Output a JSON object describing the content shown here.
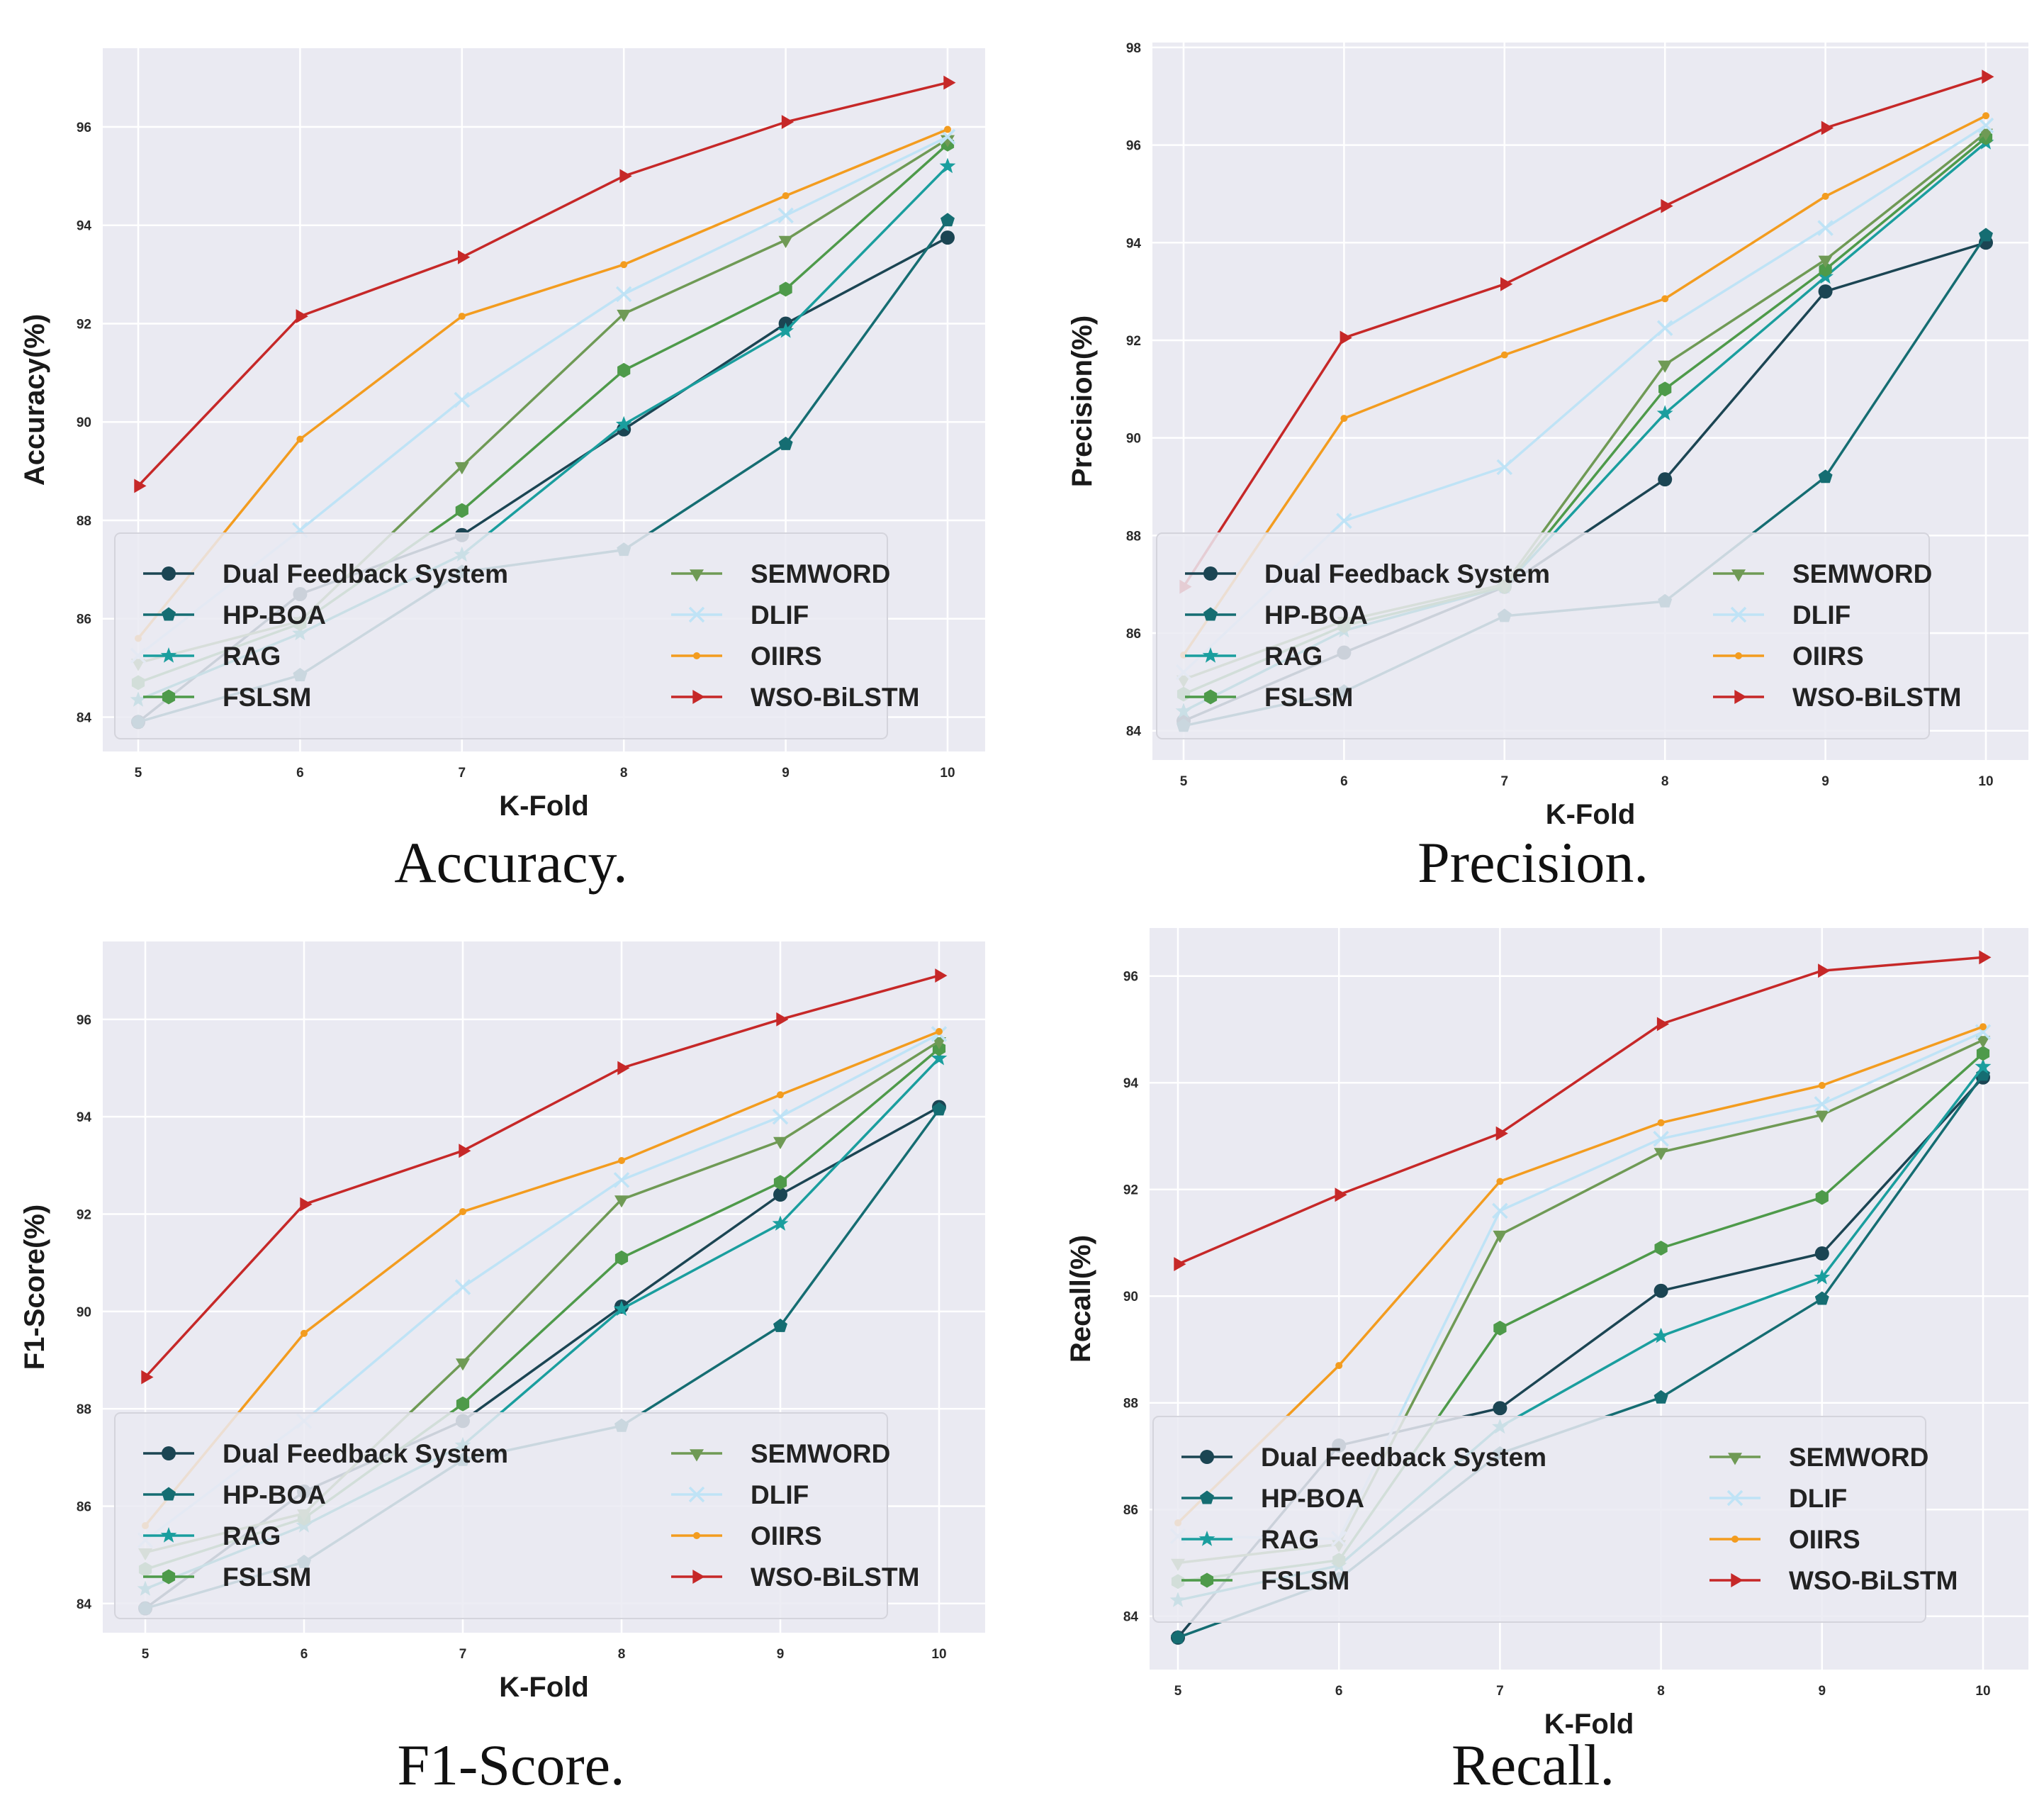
{
  "colors": {
    "Dual Feedback System": "#1b4553",
    "HP-BOA": "#156d72",
    "RAG": "#1a9e9e",
    "FSLSM": "#4e9a4a",
    "SEMWORD": "#6f9a55",
    "DLIF": "#bfe3f6",
    "OIIRS": "#f39c1f",
    "WSO-BiLSTM": "#c62828"
  },
  "markers": {
    "Dual Feedback System": "circle",
    "HP-BOA": "pentagon",
    "RAG": "star",
    "FSLSM": "hexagon",
    "SEMWORD": "triangle-down",
    "DLIF": "x",
    "OIIRS": "dot",
    "WSO-BiLSTM": "triangle-right"
  },
  "chart_data": [
    {
      "type": "line",
      "caption": "Accuracy.",
      "xlabel": "K-Fold",
      "ylabel": "Accuracy(%)",
      "x": [
        5,
        6,
        7,
        8,
        9,
        10
      ],
      "ylim": [
        83.3,
        97.6
      ],
      "yticks": [
        84,
        86,
        88,
        90,
        92,
        94,
        96
      ],
      "legend_loc": "lower-left",
      "series": [
        {
          "name": "Dual Feedback System",
          "values": [
            83.9,
            86.5,
            87.7,
            89.85,
            92.0,
            93.75
          ]
        },
        {
          "name": "HP-BOA",
          "values": [
            83.9,
            84.85,
            86.95,
            87.4,
            89.55,
            94.1
          ]
        },
        {
          "name": "RAG",
          "values": [
            84.35,
            85.7,
            87.3,
            89.95,
            91.85,
            95.2
          ]
        },
        {
          "name": "FSLSM",
          "values": [
            84.7,
            85.9,
            88.2,
            91.05,
            92.7,
            95.65
          ]
        },
        {
          "name": "SEMWORD",
          "values": [
            85.1,
            85.95,
            89.1,
            92.2,
            93.7,
            95.75
          ]
        },
        {
          "name": "DLIF",
          "values": [
            85.25,
            87.8,
            90.45,
            92.6,
            94.2,
            95.8
          ]
        },
        {
          "name": "OIIRS",
          "values": [
            85.6,
            89.65,
            92.15,
            93.2,
            94.6,
            95.95
          ]
        },
        {
          "name": "WSO-BiLSTM",
          "values": [
            88.7,
            92.15,
            93.35,
            95.0,
            96.1,
            96.9
          ]
        }
      ]
    },
    {
      "type": "line",
      "caption": "Precision.",
      "xlabel": "K-Fold",
      "ylabel": "Precision(%)",
      "x": [
        5,
        6,
        7,
        8,
        9,
        10
      ],
      "ylim": [
        83.4,
        98.1
      ],
      "yticks": [
        84,
        86,
        88,
        90,
        92,
        94,
        96,
        98
      ],
      "legend_loc": "lower-left",
      "series": [
        {
          "name": "Dual Feedback System",
          "values": [
            84.2,
            85.6,
            86.95,
            89.15,
            93.0,
            94.0
          ]
        },
        {
          "name": "HP-BOA",
          "values": [
            84.1,
            84.8,
            86.35,
            86.65,
            89.2,
            94.15
          ]
        },
        {
          "name": "RAG",
          "values": [
            84.4,
            86.05,
            86.95,
            90.5,
            93.3,
            96.05
          ]
        },
        {
          "name": "FSLSM",
          "values": [
            84.75,
            86.15,
            86.95,
            91.0,
            93.45,
            96.15
          ]
        },
        {
          "name": "SEMWORD",
          "values": [
            85.05,
            86.25,
            87.0,
            91.5,
            93.65,
            96.25
          ]
        },
        {
          "name": "DLIF",
          "values": [
            85.2,
            88.3,
            89.4,
            92.25,
            94.3,
            96.4
          ]
        },
        {
          "name": "OIIRS",
          "values": [
            85.55,
            90.4,
            91.7,
            92.85,
            94.95,
            96.6
          ]
        },
        {
          "name": "WSO-BiLSTM",
          "values": [
            86.95,
            92.05,
            93.15,
            94.75,
            96.35,
            97.4
          ]
        }
      ]
    },
    {
      "type": "line",
      "caption": "F1-Score.",
      "xlabel": "K-Fold",
      "ylabel": "F1-Score(%)",
      "x": [
        5,
        6,
        7,
        8,
        9,
        10
      ],
      "ylim": [
        83.4,
        97.6
      ],
      "yticks": [
        84,
        86,
        88,
        90,
        92,
        94,
        96
      ],
      "legend_loc": "lower-left",
      "series": [
        {
          "name": "Dual Feedback System",
          "values": [
            83.9,
            86.3,
            87.75,
            90.1,
            92.4,
            94.2
          ]
        },
        {
          "name": "HP-BOA",
          "values": [
            83.9,
            84.85,
            86.95,
            87.65,
            89.7,
            94.15
          ]
        },
        {
          "name": "RAG",
          "values": [
            84.3,
            85.6,
            87.25,
            90.05,
            91.8,
            95.2
          ]
        },
        {
          "name": "FSLSM",
          "values": [
            84.7,
            85.75,
            88.1,
            91.1,
            92.65,
            95.4
          ]
        },
        {
          "name": "SEMWORD",
          "values": [
            85.05,
            85.85,
            88.95,
            92.3,
            93.5,
            95.55
          ]
        },
        {
          "name": "DLIF",
          "values": [
            85.3,
            87.75,
            90.5,
            92.7,
            94.0,
            95.7
          ]
        },
        {
          "name": "OIIRS",
          "values": [
            85.6,
            89.55,
            92.05,
            93.1,
            94.45,
            95.75
          ]
        },
        {
          "name": "WSO-BiLSTM",
          "values": [
            88.65,
            92.2,
            93.3,
            95.0,
            96.0,
            96.9
          ]
        }
      ]
    },
    {
      "type": "line",
      "caption": "Recall.",
      "xlabel": "K-Fold",
      "ylabel": "Recall(%)",
      "x": [
        5,
        6,
        7,
        8,
        9,
        10
      ],
      "ylim": [
        83.0,
        96.9
      ],
      "yticks": [
        84,
        86,
        88,
        90,
        92,
        94,
        96
      ],
      "legend_loc": "lower-left",
      "series": [
        {
          "name": "Dual Feedback System",
          "values": [
            83.6,
            87.2,
            87.9,
            90.1,
            90.8,
            94.1
          ]
        },
        {
          "name": "HP-BOA",
          "values": [
            83.6,
            84.7,
            87.05,
            88.1,
            89.95,
            94.15
          ]
        },
        {
          "name": "RAG",
          "values": [
            84.3,
            84.95,
            87.55,
            89.25,
            90.35,
            94.3
          ]
        },
        {
          "name": "FSLSM",
          "values": [
            84.65,
            85.05,
            89.4,
            90.9,
            91.85,
            94.55
          ]
        },
        {
          "name": "SEMWORD",
          "values": [
            85.0,
            85.35,
            91.15,
            92.7,
            93.4,
            94.8
          ]
        },
        {
          "name": "DLIF",
          "values": [
            85.5,
            85.45,
            91.6,
            92.95,
            93.6,
            94.95
          ]
        },
        {
          "name": "OIIRS",
          "values": [
            85.75,
            88.7,
            92.15,
            93.25,
            93.95,
            95.05
          ]
        },
        {
          "name": "WSO-BiLSTM",
          "values": [
            90.6,
            91.9,
            93.05,
            95.1,
            96.1,
            96.35
          ]
        }
      ]
    }
  ]
}
